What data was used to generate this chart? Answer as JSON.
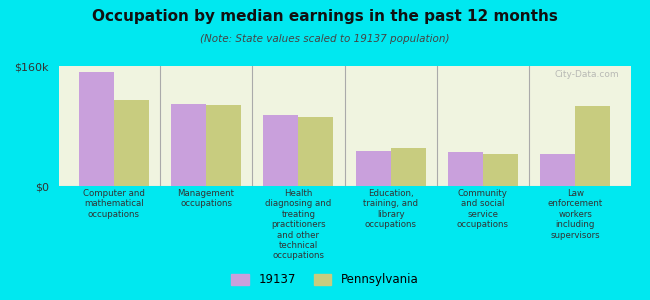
{
  "title": "Occupation by median earnings in the past 12 months",
  "subtitle": "(Note: State values scaled to 19137 population)",
  "categories": [
    "Computer and\nmathematical\noccupations",
    "Management\noccupations",
    "Health\ndiagnosing and\ntreating\npractitioners\nand other\ntechnical\noccupations",
    "Education,\ntraining, and\nlibrary\noccupations",
    "Community\nand social\nservice\noccupations",
    "Law\nenforcement\nworkers\nincluding\nsupervisors"
  ],
  "values_19137": [
    152000,
    110000,
    95000,
    47000,
    45000,
    43000
  ],
  "values_pennsylvania": [
    115000,
    108000,
    92000,
    51000,
    43000,
    107000
  ],
  "color_19137": "#c9a0dc",
  "color_pennsylvania": "#c8cc7f",
  "background_chart": "#f0f4e0",
  "background_fig": "#00e8f0",
  "ylim": [
    0,
    160000
  ],
  "ytick_labels": [
    "$0",
    "$160k"
  ],
  "legend_labels": [
    "19137",
    "Pennsylvania"
  ],
  "watermark": "City-Data.com",
  "bar_width": 0.38
}
